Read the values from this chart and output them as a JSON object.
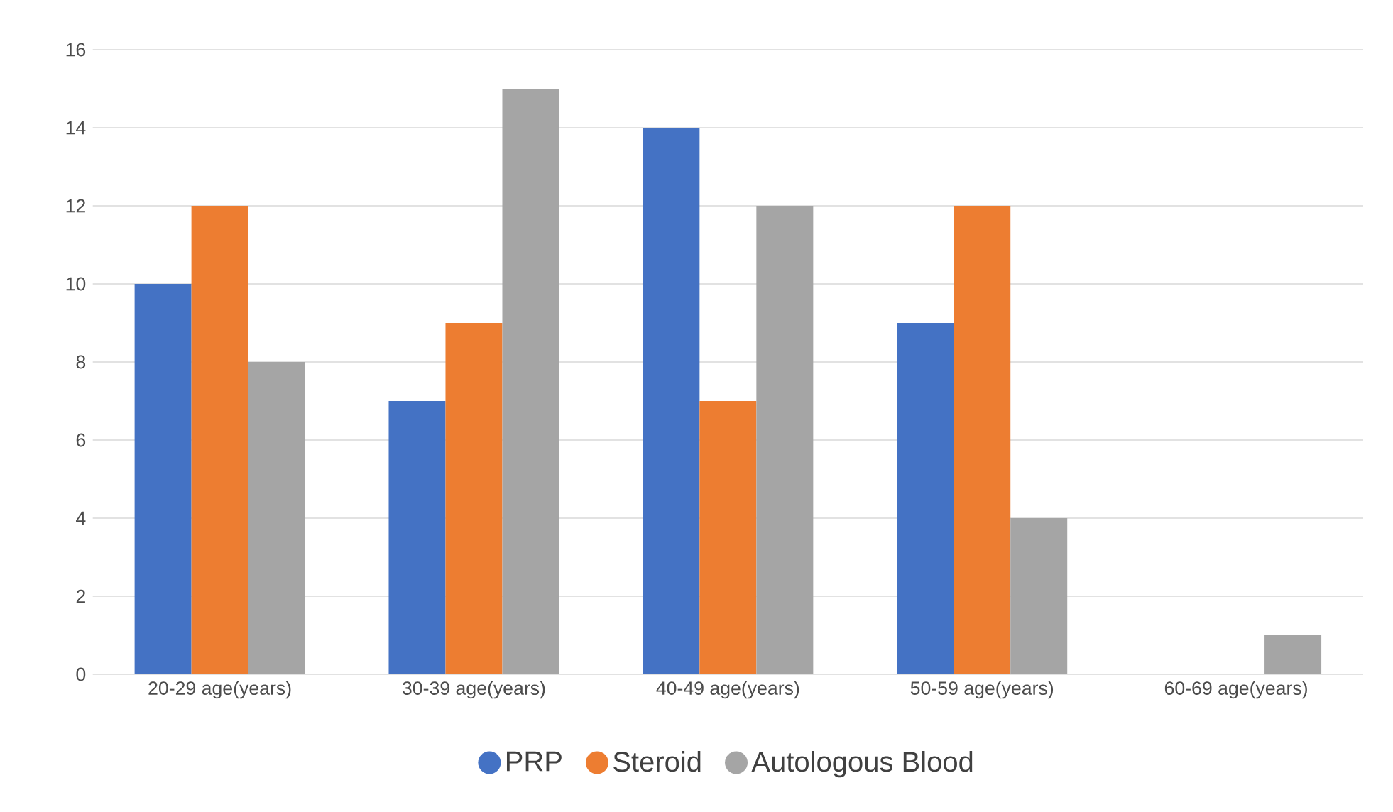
{
  "chart_data": {
    "type": "bar",
    "categories": [
      "20-29 age(years)",
      "30-39 age(years)",
      "40-49 age(years)",
      "50-59 age(years)",
      "60-69 age(years)"
    ],
    "series": [
      {
        "name": "PRP",
        "color": "#4472c4",
        "values": [
          10,
          7,
          14,
          9,
          0
        ]
      },
      {
        "name": "Steroid",
        "color": "#ed7d31",
        "values": [
          12,
          9,
          7,
          12,
          0
        ]
      },
      {
        "name": "Autologous Blood",
        "color": "#a5a5a5",
        "values": [
          8,
          15,
          12,
          4,
          1
        ]
      }
    ],
    "ylim": [
      0,
      16
    ],
    "yticks": [
      0,
      2,
      4,
      6,
      8,
      10,
      12,
      14,
      16
    ],
    "grid": "y",
    "legend": "bottom"
  }
}
